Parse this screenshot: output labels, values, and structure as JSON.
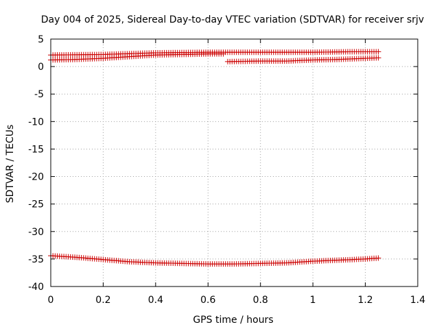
{
  "chart_data": {
    "type": "scatter",
    "title": "Day 004 of 2025, Sidereal Day-to-day VTEC variation (SDTVAR) for receiver srjv",
    "xlabel": "GPS time / hours",
    "ylabel": "SDTVAR / TECUs",
    "xlim": [
      0,
      1.4
    ],
    "ylim": [
      -40,
      5
    ],
    "xticks": [
      0,
      0.2,
      0.4,
      0.6,
      0.8,
      1,
      1.2,
      1.4
    ],
    "xtick_labels": [
      "0",
      "0.2",
      "0.4",
      "0.6",
      "0.8",
      "1",
      "1.2",
      "1.4"
    ],
    "yticks": [
      5,
      0,
      -5,
      -10,
      -15,
      -20,
      -25,
      -30,
      -35,
      -40
    ],
    "ytick_labels": [
      "5",
      "0",
      "-5",
      "-10",
      "-15",
      "-20",
      "-25",
      "-30",
      "-35",
      "-40"
    ],
    "grid": true,
    "marker": "plus",
    "color": "#cc0000",
    "x_step": 0.00833,
    "series": [
      {
        "name": "upper-track",
        "x_start": 0.0,
        "x_end": 1.255,
        "knots_x": [
          0.0,
          0.2,
          0.4,
          0.6,
          0.8,
          1.0,
          1.15,
          1.255
        ],
        "knots_y": [
          2.1,
          2.2,
          2.5,
          2.6,
          2.6,
          2.6,
          2.7,
          2.7
        ]
      },
      {
        "name": "middle-track-a",
        "x_start": 0.0,
        "x_end": 0.665,
        "knots_x": [
          0.0,
          0.1,
          0.2,
          0.3,
          0.4,
          0.5,
          0.6,
          0.665
        ],
        "knots_y": [
          1.2,
          1.3,
          1.5,
          1.8,
          2.1,
          2.2,
          2.3,
          2.3
        ]
      },
      {
        "name": "middle-track-b",
        "x_start": 0.675,
        "x_end": 1.255,
        "knots_x": [
          0.675,
          0.8,
          0.9,
          1.0,
          1.1,
          1.255
        ],
        "knots_y": [
          0.9,
          1.0,
          1.0,
          1.2,
          1.3,
          1.6
        ]
      },
      {
        "name": "lower-track",
        "x_start": 0.0,
        "x_end": 1.255,
        "knots_x": [
          0.0,
          0.1,
          0.2,
          0.3,
          0.4,
          0.5,
          0.6,
          0.7,
          0.8,
          0.9,
          1.0,
          1.1,
          1.2,
          1.255
        ],
        "knots_y": [
          -34.4,
          -34.7,
          -35.1,
          -35.5,
          -35.7,
          -35.8,
          -35.9,
          -35.9,
          -35.8,
          -35.7,
          -35.4,
          -35.2,
          -35.0,
          -34.8
        ]
      }
    ]
  }
}
